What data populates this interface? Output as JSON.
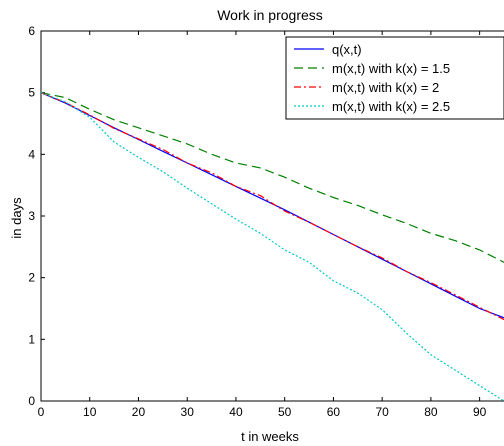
{
  "chart_data": {
    "type": "line",
    "title": "Work in progress",
    "xlabel": "t in weeks",
    "ylabel": "in days",
    "xlim": [
      0,
      95
    ],
    "ylim": [
      0,
      6
    ],
    "x_ticks": [
      "0",
      "10",
      "20",
      "30",
      "40",
      "50",
      "60",
      "70",
      "80",
      "90"
    ],
    "y_ticks": [
      "0",
      "1",
      "2",
      "3",
      "4",
      "5",
      "6"
    ],
    "grid": false,
    "legend_position": "top-right",
    "series": [
      {
        "name": "q(x,t)",
        "color": "#0000ff",
        "dash": "solid",
        "x": [
          0,
          5,
          10,
          15,
          20,
          25,
          30,
          35,
          40,
          45,
          50,
          55,
          60,
          65,
          70,
          75,
          80,
          85,
          90,
          95
        ],
        "y": [
          5.0,
          4.83,
          4.63,
          4.43,
          4.24,
          4.05,
          3.86,
          3.67,
          3.48,
          3.29,
          3.1,
          2.9,
          2.7,
          2.5,
          2.3,
          2.1,
          1.9,
          1.7,
          1.5,
          1.35
        ]
      },
      {
        "name": "m(x,t) with k(x) = 1.5",
        "color": "#008000",
        "dash": "long-dash",
        "x": [
          0,
          5,
          10,
          15,
          20,
          25,
          30,
          35,
          40,
          45,
          50,
          55,
          60,
          65,
          70,
          75,
          80,
          85,
          90,
          95
        ],
        "y": [
          5.0,
          4.92,
          4.73,
          4.56,
          4.43,
          4.3,
          4.17,
          4.0,
          3.86,
          3.78,
          3.63,
          3.45,
          3.3,
          3.17,
          3.02,
          2.88,
          2.72,
          2.6,
          2.45,
          2.25
        ]
      },
      {
        "name": "m(x,t) with k(x) = 2",
        "color": "#ff0000",
        "dash": "dash-dot",
        "x": [
          0,
          5,
          10,
          15,
          20,
          25,
          30,
          35,
          40,
          45,
          50,
          55,
          60,
          65,
          70,
          75,
          80,
          85,
          90,
          95
        ],
        "y": [
          5.0,
          4.84,
          4.64,
          4.42,
          4.25,
          4.08,
          3.86,
          3.7,
          3.48,
          3.33,
          3.08,
          2.9,
          2.7,
          2.5,
          2.32,
          2.1,
          1.92,
          1.72,
          1.52,
          1.32
        ]
      },
      {
        "name": "m(x,t) with k(x) = 2.5",
        "color": "#00c8c8",
        "dash": "dotted",
        "x": [
          0,
          5,
          10,
          15,
          20,
          25,
          30,
          35,
          40,
          45,
          50,
          55,
          60,
          65,
          70,
          75,
          80,
          85,
          90,
          95
        ],
        "y": [
          5.0,
          4.85,
          4.6,
          4.2,
          3.95,
          3.72,
          3.45,
          3.2,
          2.95,
          2.72,
          2.45,
          2.25,
          1.95,
          1.75,
          1.48,
          1.1,
          0.75,
          0.5,
          0.25,
          0.0
        ]
      }
    ]
  }
}
